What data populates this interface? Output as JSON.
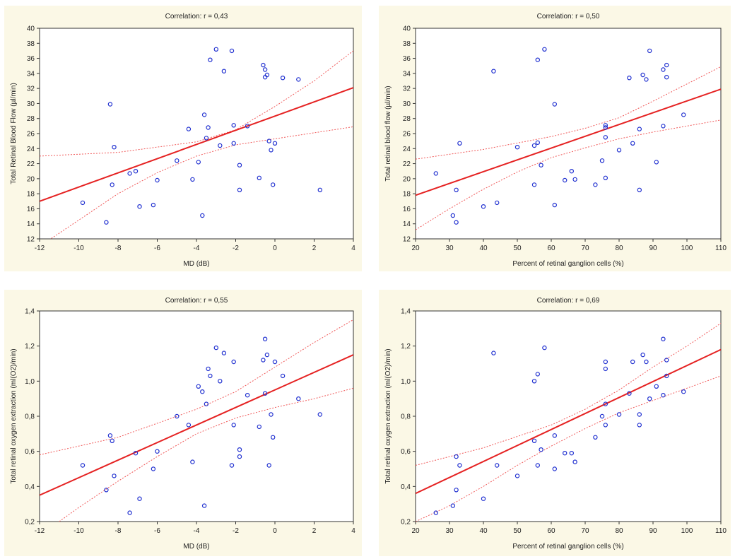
{
  "chart_data": [
    {
      "type": "scatter",
      "title": "Correlation: r = 0,43",
      "xlabel": "MD (dB)",
      "ylabel": "Total Retinal Blood Flow (µl/min)",
      "xlim": [
        -12,
        4
      ],
      "ylim": [
        12,
        40
      ],
      "xticks": [
        "-12",
        "-10",
        "-8",
        "-6",
        "-4",
        "-2",
        "0",
        "2",
        "4"
      ],
      "yticks": [
        "12",
        "14",
        "16",
        "18",
        "20",
        "22",
        "24",
        "26",
        "28",
        "30",
        "32",
        "34",
        "36",
        "38",
        "40"
      ],
      "x": [
        -9.8,
        -8.6,
        -8.4,
        -8.3,
        -8.2,
        -7.4,
        -7.1,
        -6.9,
        -6.2,
        -6.0,
        -5.0,
        -4.4,
        -4.2,
        -3.9,
        -3.7,
        -3.6,
        -3.5,
        -3.4,
        -3.3,
        -3.0,
        -2.8,
        -2.6,
        -2.2,
        -2.1,
        -2.1,
        -1.8,
        -1.8,
        -1.4,
        -0.8,
        -0.6,
        -0.5,
        -0.5,
        -0.4,
        -0.3,
        -0.2,
        -0.1,
        0.0,
        0.4,
        1.2,
        2.3
      ],
      "y": [
        16.8,
        14.2,
        29.9,
        19.2,
        24.2,
        20.7,
        21.0,
        16.3,
        16.5,
        19.8,
        22.4,
        26.6,
        19.9,
        22.2,
        15.1,
        28.5,
        25.4,
        26.8,
        35.8,
        37.2,
        24.4,
        34.3,
        37.0,
        27.1,
        24.7,
        21.8,
        18.5,
        27.0,
        20.1,
        35.1,
        34.5,
        33.5,
        33.8,
        25.0,
        23.8,
        19.2,
        24.7,
        33.4,
        33.2,
        18.5
      ],
      "fit_line": {
        "x": [
          -12,
          4
        ],
        "y": [
          17.0,
          32.1
        ]
      },
      "ci_upper": {
        "x": [
          -12,
          -8,
          -4,
          -2,
          0,
          2,
          4
        ],
        "y": [
          23.0,
          23.5,
          24.9,
          26.5,
          29.6,
          33.0,
          37.0
        ]
      },
      "ci_lower": {
        "x": [
          -12,
          -10,
          -8,
          -6,
          -4,
          -2,
          0,
          2,
          4
        ],
        "y": [
          11.0,
          14.5,
          18.0,
          20.8,
          23.0,
          24.5,
          25.3,
          26.1,
          26.9
        ]
      }
    },
    {
      "type": "scatter",
      "title": "Correlation: r = 0,50",
      "xlabel": "Percent of retinal ganglion cells (%)",
      "ylabel": "Total retinal blood flow (µl/min)",
      "xlim": [
        20,
        110
      ],
      "ylim": [
        12,
        40
      ],
      "xticks": [
        "20",
        "30",
        "40",
        "50",
        "60",
        "70",
        "80",
        "90",
        "100",
        "110"
      ],
      "yticks": [
        "12",
        "14",
        "16",
        "18",
        "20",
        "22",
        "24",
        "26",
        "28",
        "30",
        "32",
        "34",
        "36",
        "38",
        "40"
      ],
      "x": [
        26,
        31,
        32,
        32,
        33,
        40,
        43,
        44,
        50,
        55,
        55,
        56,
        56,
        57,
        58,
        61,
        61,
        64,
        66,
        67,
        73,
        75,
        76,
        76,
        76,
        76,
        80,
        83,
        84,
        86,
        86,
        87,
        88,
        89,
        91,
        93,
        93,
        94,
        94,
        99
      ],
      "y": [
        20.7,
        15.1,
        18.5,
        14.2,
        24.7,
        16.3,
        34.3,
        16.8,
        24.2,
        24.4,
        19.2,
        35.8,
        24.8,
        21.8,
        37.2,
        29.9,
        16.5,
        19.8,
        21.0,
        19.9,
        19.2,
        22.4,
        25.5,
        26.8,
        27.1,
        20.1,
        23.8,
        33.4,
        24.7,
        26.6,
        18.5,
        33.8,
        33.2,
        37.0,
        22.2,
        34.5,
        27.0,
        35.1,
        33.5,
        28.5
      ],
      "fit_line": {
        "x": [
          20,
          110
        ],
        "y": [
          17.8,
          31.9
        ]
      },
      "ci_upper": {
        "x": [
          20,
          40,
          60,
          70,
          80,
          90,
          100,
          110
        ],
        "y": [
          22.6,
          23.9,
          25.6,
          26.7,
          28.1,
          30.3,
          32.6,
          34.9
        ]
      },
      "ci_lower": {
        "x": [
          20,
          30,
          40,
          50,
          60,
          70,
          80,
          90,
          110
        ],
        "y": [
          13.2,
          16.0,
          18.6,
          20.9,
          22.8,
          24.1,
          25.3,
          26.2,
          27.8
        ]
      }
    },
    {
      "type": "scatter",
      "title": "Correlation: r = 0,55",
      "xlabel": "MD (dB)",
      "ylabel": "Total retinal oxygen extraction (ml(O2)/min)",
      "xlim": [
        -12,
        4
      ],
      "ylim": [
        0.2,
        1.4
      ],
      "xticks": [
        "-12",
        "-10",
        "-8",
        "-6",
        "-4",
        "-2",
        "0",
        "2",
        "4"
      ],
      "yticks": [
        "0,2",
        "0,4",
        "0,6",
        "0,8",
        "1,0",
        "1,2",
        "1,4"
      ],
      "x": [
        -9.8,
        -8.6,
        -8.4,
        -8.3,
        -8.2,
        -7.4,
        -7.1,
        -6.9,
        -6.2,
        -6.0,
        -5.0,
        -4.4,
        -4.2,
        -3.9,
        -3.7,
        -3.6,
        -3.5,
        -3.4,
        -3.3,
        -3.0,
        -2.8,
        -2.6,
        -2.2,
        -2.1,
        -2.1,
        -1.8,
        -1.8,
        -1.4,
        -0.8,
        -0.6,
        -0.5,
        -0.5,
        -0.4,
        -0.3,
        -0.2,
        -0.1,
        0.0,
        0.4,
        1.2,
        2.3
      ],
      "y": [
        0.52,
        0.38,
        0.69,
        0.66,
        0.46,
        0.25,
        0.59,
        0.33,
        0.5,
        0.6,
        0.8,
        0.75,
        0.54,
        0.97,
        0.94,
        0.29,
        0.87,
        1.07,
        1.03,
        1.19,
        1.0,
        1.16,
        0.52,
        1.11,
        0.75,
        0.61,
        0.57,
        0.92,
        0.74,
        1.12,
        1.24,
        0.93,
        1.15,
        0.52,
        0.81,
        0.68,
        1.11,
        1.03,
        0.9,
        0.81
      ],
      "fit_line": {
        "x": [
          -12,
          4
        ],
        "y": [
          0.35,
          1.15
        ]
      },
      "ci_upper": {
        "x": [
          -12,
          -8,
          -4,
          -2,
          0,
          2,
          4
        ],
        "y": [
          0.58,
          0.68,
          0.84,
          0.94,
          1.08,
          1.22,
          1.35
        ]
      },
      "ci_lower": {
        "x": [
          -11,
          -10,
          -8,
          -6,
          -4,
          -2,
          0,
          2,
          4
        ],
        "y": [
          0.2,
          0.28,
          0.43,
          0.57,
          0.7,
          0.79,
          0.85,
          0.9,
          0.96
        ]
      }
    },
    {
      "type": "scatter",
      "title": "Correlation: r = 0,69",
      "xlabel": "Percent of retinal ganglion cells (%)",
      "ylabel": "Total retinal oxygen extraction (ml(O2)/min)",
      "xlim": [
        20,
        110
      ],
      "ylim": [
        0.2,
        1.4
      ],
      "xticks": [
        "20",
        "30",
        "40",
        "50",
        "60",
        "70",
        "80",
        "90",
        "100",
        "110"
      ],
      "yticks": [
        "0,2",
        "0,4",
        "0,6",
        "0,8",
        "1,0",
        "1,2",
        "1,4"
      ],
      "x": [
        26,
        31,
        32,
        32,
        33,
        40,
        43,
        44,
        50,
        55,
        55,
        56,
        56,
        57,
        58,
        61,
        61,
        64,
        66,
        67,
        73,
        75,
        76,
        76,
        76,
        76,
        80,
        83,
        84,
        86,
        86,
        87,
        88,
        89,
        91,
        93,
        93,
        94,
        94,
        99
      ],
      "y": [
        0.25,
        0.29,
        0.38,
        0.57,
        0.52,
        0.33,
        1.16,
        0.52,
        0.46,
        1.0,
        0.66,
        1.04,
        0.52,
        0.61,
        1.19,
        0.5,
        0.69,
        0.59,
        0.59,
        0.54,
        0.68,
        0.8,
        0.87,
        1.11,
        1.07,
        0.75,
        0.81,
        0.93,
        1.11,
        0.81,
        0.75,
        1.15,
        1.11,
        0.9,
        0.97,
        1.24,
        0.92,
        1.03,
        1.12,
        0.94
      ],
      "fit_line": {
        "x": [
          20,
          110
        ],
        "y": [
          0.36,
          1.18
        ]
      },
      "ci_upper": {
        "x": [
          20,
          40,
          60,
          70,
          80,
          90,
          100,
          110
        ],
        "y": [
          0.52,
          0.62,
          0.75,
          0.84,
          0.95,
          1.08,
          1.2,
          1.33
        ]
      },
      "ci_lower": {
        "x": [
          20,
          30,
          40,
          50,
          60,
          70,
          80,
          90,
          100,
          110
        ],
        "y": [
          0.2,
          0.29,
          0.4,
          0.52,
          0.63,
          0.73,
          0.82,
          0.89,
          0.96,
          1.03
        ]
      }
    }
  ],
  "colors": {
    "point": "#2030d0",
    "fit": "#e52222",
    "ci": "#f05a5a",
    "panel_bg": "#fbf8e6",
    "plot_bg": "#ffffff",
    "axis": "#333333"
  }
}
